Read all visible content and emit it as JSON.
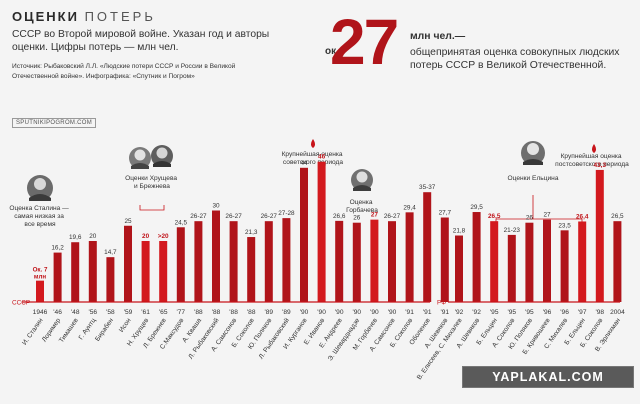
{
  "header": {
    "title_word1": "ОЦЕНКИ",
    "title_word2": "ПОТЕРЬ",
    "subtitle": "СССР во Второй мировой войне. Указан год и авторы оценки. Цифры потерь — млн чел.",
    "source": "Источник: Рыбаковский Л.Л. «Людские потери СССР и России в Великой Отечественной войне». Инфографика: «Спутник и Погром»",
    "brand": "SPUTNIKIPOGROM.COM"
  },
  "headline": {
    "prefix": "ок.",
    "value": "27",
    "unit": "млн чел.—",
    "description": "общепринятая оценка совокупных людских потерь СССР в Великой Отечественной."
  },
  "annotations": {
    "stalin": "Оценка Сталина — самая низкая за все время",
    "khrushchev": "Оценки Хрущева и Брежнева",
    "soviet_max": "Крупнейшая оценка советского периода",
    "gorbachev": "Оценка Горбачева",
    "yeltsin": "Оценки Ельцина",
    "post_max": "Крупнейшая оценка постсоветского периода"
  },
  "axis_labels": {
    "left": "СССР",
    "right": "РФ"
  },
  "watermark": "YAPLAKAL.COM",
  "chart_data": {
    "type": "bar",
    "title": "ОЦЕНКИ ПОТЕРЬ",
    "value_unit": "млн чел.",
    "colors": {
      "bar": "#b0141a",
      "highlight": "#d3191e",
      "label": "#333333",
      "highlight_label": "#c0141a",
      "baseline": "#c8141a"
    },
    "segments": [
      {
        "name": "СССР",
        "bars": [
          {
            "year": "1946",
            "author": "И. Сталин",
            "value": 7,
            "label": "Ок. 7 млн",
            "highlight": true
          },
          {
            "year": "'46",
            "author": "Лоример",
            "value": 16.2,
            "label": "16,2"
          },
          {
            "year": "'48",
            "author": "Тимашев",
            "value": 19.6,
            "label": "19,6"
          },
          {
            "year": "'56",
            "author": "Г. Аунтц",
            "value": 20,
            "label": "20"
          },
          {
            "year": "'58",
            "author": "Бирабен",
            "value": 14.7,
            "label": "14,7"
          },
          {
            "year": "'59",
            "author": "Исон",
            "value": 25,
            "label": "25"
          },
          {
            "year": "'61",
            "author": "Н. Хрущев",
            "value": 20,
            "label": "20",
            "highlight": true
          },
          {
            "year": "'65",
            "author": "Л. Брежнев",
            "value": 20,
            "label": ">20",
            "highlight": true
          },
          {
            "year": "'77",
            "author": "С.Максудов",
            "value": 24.5,
            "label": "24,5"
          },
          {
            "year": "'88",
            "author": "А. Кваша",
            "value": 26.5,
            "label": "26-27"
          },
          {
            "year": "'88",
            "author": "Л. Рыбаковский",
            "value": 30,
            "label": "30"
          },
          {
            "year": "'88",
            "author": "А. Самсонов",
            "value": 26.5,
            "label": "26-27"
          },
          {
            "year": "'88",
            "author": "Б. Соколов",
            "value": 21.3,
            "label": "21,3"
          },
          {
            "year": "'89",
            "author": "Ю. Поляков",
            "value": 26.5,
            "label": "26-27"
          },
          {
            "year": "'89",
            "author": "Л. Рыбаковский",
            "value": 27.5,
            "label": "27-28"
          },
          {
            "year": "'90",
            "author": "И. Курганов",
            "value": 44,
            "label": "44"
          },
          {
            "year": "'90",
            "author": "Е. Иванов",
            "value": 46,
            "label": "46",
            "highlight": true
          },
          {
            "year": "'90",
            "author": "Е. Андреев",
            "value": 26.6,
            "label": "26,6"
          },
          {
            "year": "'90",
            "author": "Э. Шеварднадзе",
            "value": 26,
            "label": "26"
          },
          {
            "year": "'90",
            "author": "М. Горбачев",
            "value": 27,
            "label": "27",
            "highlight": true
          },
          {
            "year": "'90",
            "author": "А. Самсонов",
            "value": 26.5,
            "label": "26-27"
          },
          {
            "year": "'91",
            "author": "Б. Соколов",
            "value": 29.4,
            "label": "29,4"
          },
          {
            "year": "'91",
            "author": "Оболенов",
            "value": 36,
            "label": "35-37"
          },
          {
            "year": "'91",
            "author": "А. Шевяков",
            "value": 27.7,
            "label": "27,7"
          }
        ]
      },
      {
        "name": "РФ",
        "bars": [
          {
            "year": "'92",
            "author": "В. Елисеев, С. Михалев",
            "value": 21.8,
            "label": "21,8"
          },
          {
            "year": "'92",
            "author": "А. Шевяков",
            "value": 29.5,
            "label": "29,5"
          },
          {
            "year": "'95",
            "author": "Б. Ельцин",
            "value": 26.5,
            "label": "26,5",
            "highlight": true
          },
          {
            "year": "'95",
            "author": "А. Соколов",
            "value": 22,
            "label": "21-23"
          },
          {
            "year": "'95",
            "author": "Ю. Поляков",
            "value": 26,
            "label": "26"
          },
          {
            "year": "'96",
            "author": "Б. Кривошеев",
            "value": 27,
            "label": "27"
          },
          {
            "year": "'96",
            "author": "С. Михалев",
            "value": 23.5,
            "label": "23,5"
          },
          {
            "year": "'97",
            "author": "Б. Ельцин",
            "value": 26.4,
            "label": "26,4",
            "highlight": true
          },
          {
            "year": "'98",
            "author": "Б. Соколов",
            "value": 43.3,
            "label": "43,3",
            "highlight": true
          },
          {
            "year": "2004",
            "author": "В. Эрлихман",
            "value": 26.5,
            "label": "26,5"
          }
        ]
      }
    ]
  }
}
